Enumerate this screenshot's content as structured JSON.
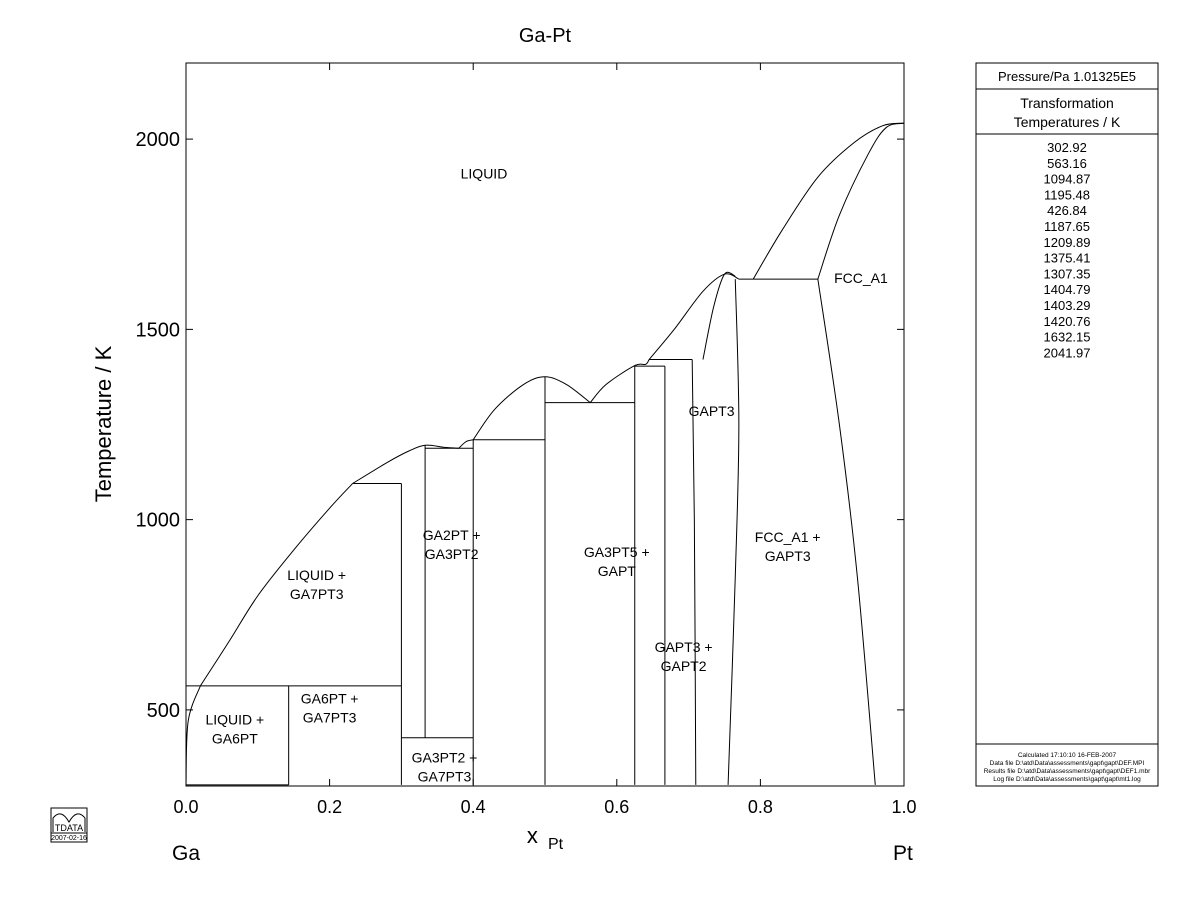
{
  "chart_data": {
    "type": "phase-diagram",
    "title": "Ga-Pt",
    "xlabel_main": "x",
    "xlabel_sub": "Pt",
    "ylabel": "Temperature / K",
    "xlim": [
      0,
      1
    ],
    "ylim": [
      300,
      2200
    ],
    "x_ticks": [
      {
        "value": 0.0,
        "label": "0.0"
      },
      {
        "value": 0.2,
        "label": "0.2"
      },
      {
        "value": 0.4,
        "label": "0.4"
      },
      {
        "value": 0.6,
        "label": "0.6"
      },
      {
        "value": 0.8,
        "label": "0.8"
      },
      {
        "value": 1.0,
        "label": "1.0"
      }
    ],
    "y_ticks": [
      {
        "value": 500,
        "label": "500"
      },
      {
        "value": 1000,
        "label": "1000"
      },
      {
        "value": 1500,
        "label": "1500"
      },
      {
        "value": 2000,
        "label": "2000"
      }
    ],
    "endpoint_left": "Ga",
    "endpoint_right": "Pt",
    "region_labels": [
      {
        "lines": [
          "LIQUID"
        ],
        "x": 0.415,
        "y": 1910
      },
      {
        "lines": [
          "FCC_A1"
        ],
        "x": 0.94,
        "y": 1635
      },
      {
        "lines": [
          "GAPT3"
        ],
        "x": 0.732,
        "y": 1285
      },
      {
        "lines": [
          "LIQUID +",
          "GA7PT3"
        ],
        "x": 0.182,
        "y": 830
      },
      {
        "lines": [
          "GA2PT +",
          "GA3PT2"
        ],
        "x": 0.37,
        "y": 935
      },
      {
        "lines": [
          "GA3PT5 +",
          "GAPT"
        ],
        "x": 0.6,
        "y": 890
      },
      {
        "lines": [
          "FCC_A1 +",
          "GAPT3"
        ],
        "x": 0.838,
        "y": 930
      },
      {
        "lines": [
          "GAPT3 +",
          "GAPT2"
        ],
        "x": 0.693,
        "y": 640
      },
      {
        "lines": [
          "LIQUID +",
          "GA6PT"
        ],
        "x": 0.068,
        "y": 450
      },
      {
        "lines": [
          "GA6PT +",
          "GA7PT3"
        ],
        "x": 0.2,
        "y": 505
      },
      {
        "lines": [
          "GA3PT2 +",
          "GA7PT3"
        ],
        "x": 0.36,
        "y": 350
      }
    ],
    "phase_boundaries": [
      {
        "kind": "curve",
        "points": [
          [
            0.0,
            302.92
          ],
          [
            0.003,
            470
          ],
          [
            0.02,
            563.16
          ]
        ]
      },
      {
        "kind": "curve",
        "points": [
          [
            0.02,
            563.16
          ],
          [
            0.06,
            680
          ],
          [
            0.1,
            800
          ],
          [
            0.15,
            920
          ],
          [
            0.2,
            1030
          ],
          [
            0.232,
            1094.87
          ]
        ]
      },
      {
        "kind": "curve",
        "points": [
          [
            0.232,
            1094.87
          ],
          [
            0.28,
            1150
          ],
          [
            0.31,
            1180
          ],
          [
            0.333,
            1195.48
          ],
          [
            0.36,
            1190
          ],
          [
            0.38,
            1187.65
          ]
        ]
      },
      {
        "kind": "curve",
        "points": [
          [
            0.38,
            1187.65
          ],
          [
            0.39,
            1205
          ],
          [
            0.4,
            1209.89
          ]
        ]
      },
      {
        "kind": "curve",
        "points": [
          [
            0.4,
            1209.89
          ],
          [
            0.43,
            1290
          ],
          [
            0.47,
            1355
          ],
          [
            0.5,
            1375.41
          ],
          [
            0.53,
            1355
          ],
          [
            0.563,
            1307.35
          ]
        ]
      },
      {
        "kind": "curve",
        "points": [
          [
            0.563,
            1307.35
          ],
          [
            0.585,
            1355
          ],
          [
            0.625,
            1404.79
          ],
          [
            0.64,
            1408
          ],
          [
            0.645,
            1420.76
          ]
        ]
      },
      {
        "kind": "curve",
        "points": [
          [
            0.645,
            1420.76
          ],
          [
            0.68,
            1500
          ],
          [
            0.72,
            1600
          ],
          [
            0.75,
            1645
          ],
          [
            0.77,
            1632.15
          ]
        ]
      },
      {
        "kind": "curve",
        "points": [
          [
            0.72,
            1420.76
          ],
          [
            0.735,
            1560
          ],
          [
            0.75,
            1645
          ],
          [
            0.765,
            1640
          ]
        ]
      },
      {
        "kind": "curve",
        "points": [
          [
            0.79,
            1632.15
          ],
          [
            0.83,
            1760
          ],
          [
            0.88,
            1900
          ],
          [
            0.93,
            1990
          ],
          [
            0.97,
            2035
          ],
          [
            1.0,
            2041.97
          ]
        ]
      },
      {
        "kind": "curve",
        "points": [
          [
            0.88,
            1632.15
          ],
          [
            0.91,
            1800
          ],
          [
            0.95,
            1960
          ],
          [
            0.975,
            2030
          ],
          [
            1.0,
            2041.97
          ]
        ]
      },
      {
        "kind": "curve",
        "points": [
          [
            0.88,
            1632.15
          ],
          [
            0.91,
            1250
          ],
          [
            0.935,
            850
          ],
          [
            0.96,
            302.92
          ]
        ]
      },
      {
        "kind": "curve",
        "points": [
          [
            0.765,
            1632.15
          ],
          [
            0.77,
            1250
          ],
          [
            0.765,
            850
          ],
          [
            0.755,
            302.92
          ]
        ]
      },
      {
        "kind": "curve",
        "points": [
          [
            0.705,
            1420.76
          ],
          [
            0.708,
            1000
          ],
          [
            0.71,
            302.92
          ]
        ]
      },
      {
        "kind": "hline",
        "x1": 0.0,
        "x2": 0.143,
        "y": 302.92
      },
      {
        "kind": "hline",
        "x1": 0.0,
        "x2": 0.3,
        "y": 563.16
      },
      {
        "kind": "hline",
        "x1": 0.232,
        "x2": 0.3,
        "y": 1094.87
      },
      {
        "kind": "hline",
        "x1": 0.3,
        "x2": 0.4,
        "y": 426.84
      },
      {
        "kind": "hline",
        "x1": 0.333,
        "x2": 0.4,
        "y": 1187.65
      },
      {
        "kind": "hline",
        "x1": 0.4,
        "x2": 0.5,
        "y": 1209.89
      },
      {
        "kind": "hline",
        "x1": 0.5,
        "x2": 0.625,
        "y": 1307.35
      },
      {
        "kind": "hline",
        "x1": 0.625,
        "x2": 0.667,
        "y": 1403.29
      },
      {
        "kind": "hline",
        "x1": 0.645,
        "x2": 0.705,
        "y": 1420.76
      },
      {
        "kind": "hline",
        "x1": 0.77,
        "x2": 0.88,
        "y": 1632.15
      },
      {
        "kind": "vline",
        "x": 0.143,
        "y1": 302.92,
        "y2": 563.16
      },
      {
        "kind": "vline",
        "x": 0.3,
        "y1": 302.92,
        "y2": 1094.87
      },
      {
        "kind": "vline",
        "x": 0.333,
        "y1": 426.84,
        "y2": 1195.48
      },
      {
        "kind": "vline",
        "x": 0.4,
        "y1": 302.92,
        "y2": 1209.89
      },
      {
        "kind": "vline",
        "x": 0.5,
        "y1": 302.92,
        "y2": 1375.41
      },
      {
        "kind": "vline",
        "x": 0.625,
        "y1": 302.92,
        "y2": 1404.79
      },
      {
        "kind": "vline",
        "x": 0.667,
        "y1": 302.92,
        "y2": 1403.29
      }
    ]
  },
  "side_panel": {
    "pressure": "Pressure/Pa  1.01325E5",
    "header_line1": "Transformation",
    "header_line2": "Temperatures / K",
    "temperatures": [
      "302.92",
      "563.16",
      "1094.87",
      "1195.48",
      "426.84",
      "1187.65",
      "1209.89",
      "1375.41",
      "1307.35",
      "1404.79",
      "1403.29",
      "1420.76",
      "1632.15",
      "2041.97"
    ],
    "footer": [
      "Calculated  17:10:10  16-FEB-2007",
      "Data file  D:\\atd\\Data\\assessments\\gapt\\gapt\\DEF.MPI",
      "Results file  D:\\atd\\Data\\assessments\\gapt\\gapt\\DEF1.mbr",
      "Log file  D:\\atd\\Data\\assessments\\gapt\\gapt\\mt1.log"
    ]
  },
  "logo": {
    "text": "TDATA",
    "date": "2007-02-16"
  }
}
